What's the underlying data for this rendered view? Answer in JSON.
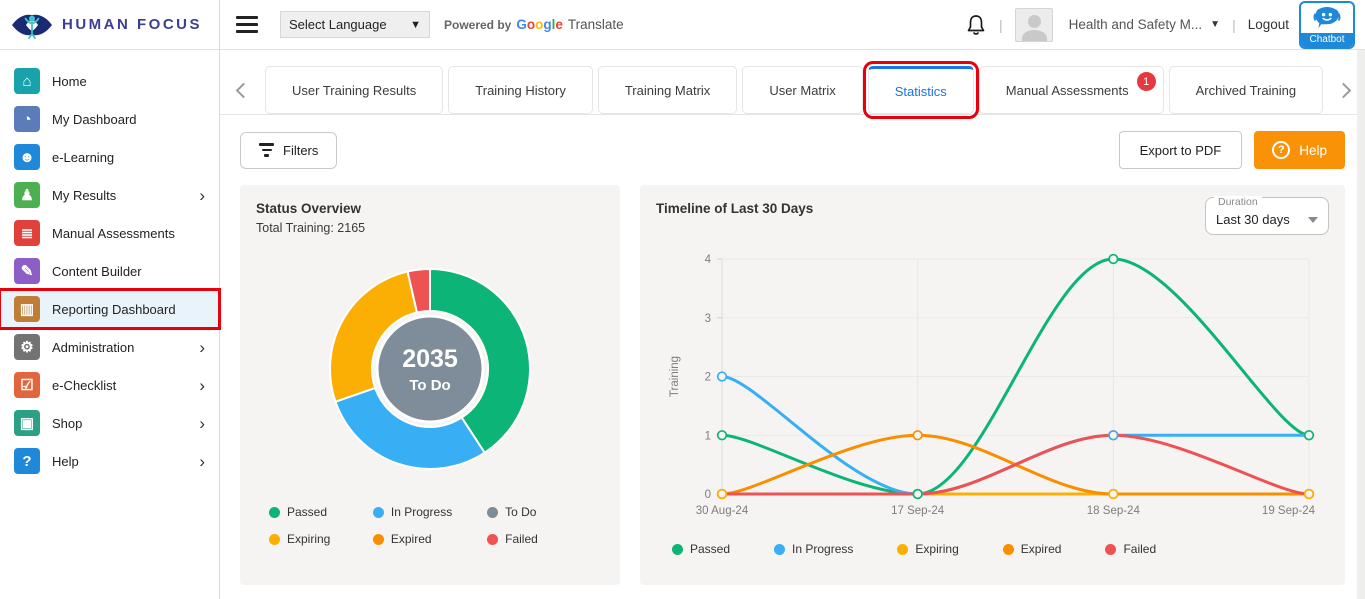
{
  "brand": {
    "name": "HUMAN FOCUS"
  },
  "topbar": {
    "language_select": "Select Language",
    "powered_by": "Powered by",
    "google": "Google",
    "translate": "Translate",
    "account_name": "Health and Safety M...",
    "logout": "Logout",
    "chatbot_label": "Chatbot"
  },
  "sidebar": {
    "items": [
      {
        "label": "Home",
        "icon": "home-icon",
        "glyph": "⌂",
        "color": "#17a2ac"
      },
      {
        "label": "My Dashboard",
        "icon": "dashboard-icon",
        "glyph": "◔",
        "color": "#5b7cb9"
      },
      {
        "label": "e-Learning",
        "icon": "elearning-icon",
        "glyph": "☻",
        "color": "#1f88d9"
      },
      {
        "label": "My Results",
        "icon": "results-icon",
        "glyph": "♟",
        "color": "#4caf50",
        "chevron": true
      },
      {
        "label": "Manual Assessments",
        "icon": "assessments-icon",
        "glyph": "≣",
        "color": "#e2403a"
      },
      {
        "label": "Content Builder",
        "icon": "content-builder-icon",
        "glyph": "✎",
        "color": "#8d5fc4"
      },
      {
        "label": "Reporting Dashboard",
        "icon": "reporting-icon",
        "glyph": "▥",
        "color": "#bf7d35",
        "active": true,
        "annotated": true
      },
      {
        "label": "Administration",
        "icon": "administration-icon",
        "glyph": "⚙",
        "color": "#737373",
        "chevron": true
      },
      {
        "label": "e-Checklist",
        "icon": "echecklist-icon",
        "glyph": "☑",
        "color": "#e2663d",
        "chevron": true
      },
      {
        "label": "Shop",
        "icon": "shop-icon",
        "glyph": "▣",
        "color": "#2ba084",
        "chevron": true
      },
      {
        "label": "Help",
        "icon": "help-icon",
        "glyph": "?",
        "color": "#1f88d9",
        "chevron": true
      }
    ]
  },
  "tabs": {
    "items": [
      {
        "label": "User Training Results"
      },
      {
        "label": "Training History"
      },
      {
        "label": "Training Matrix"
      },
      {
        "label": "User Matrix"
      },
      {
        "label": "Statistics",
        "active": true,
        "annotated": true
      },
      {
        "label": "Manual Assessments",
        "badge": "1"
      },
      {
        "label": "Archived Training"
      }
    ]
  },
  "toolbar": {
    "filters_label": "Filters",
    "export_label": "Export to PDF",
    "help_label": "Help"
  },
  "status_card": {
    "title": "Status Overview",
    "subtitle": "Total Training: 2165",
    "center_value": "2035",
    "center_label": "To Do"
  },
  "timeline_card": {
    "title": "Timeline of Last 30 Days",
    "duration_label": "Duration",
    "duration_value": "Last 30 days"
  },
  "chart_data": [
    {
      "type": "pie",
      "title": "Status Overview",
      "total_training": 2165,
      "center": {
        "value": 2035,
        "label": "To Do"
      },
      "donut": true,
      "segments": [
        {
          "label": "Passed",
          "percent": 40.8,
          "color": "#0cb577"
        },
        {
          "label": "In Progress",
          "percent": 28.9,
          "color": "#38aff5"
        },
        {
          "label": "Expiring",
          "percent": 26.7,
          "color": "#fbaf05"
        },
        {
          "label": "Failed",
          "percent": 3.6,
          "color": "#ee5253"
        }
      ],
      "legend": [
        {
          "label": "Passed",
          "color": "#0cb577"
        },
        {
          "label": "In Progress",
          "color": "#38aff5"
        },
        {
          "label": "To Do",
          "color": "#7d8c99"
        },
        {
          "label": "Expiring",
          "color": "#fbaf05"
        },
        {
          "label": "Expired",
          "color": "#f98e00"
        },
        {
          "label": "Failed",
          "color": "#ee5253"
        }
      ],
      "center_color": "#7e8d99"
    },
    {
      "type": "line",
      "title": "Timeline of Last 30 Days",
      "categories": [
        "30 Aug-24",
        "17 Sep-24",
        "18 Sep-24",
        "19 Sep-24"
      ],
      "series": [
        {
          "name": "Passed",
          "color": "#0cb577",
          "values": [
            1,
            0,
            4,
            1
          ]
        },
        {
          "name": "In Progress",
          "color": "#38aff5",
          "values": [
            2,
            0,
            1,
            1
          ]
        },
        {
          "name": "Expiring",
          "color": "#fbaf05",
          "values": [
            0,
            0,
            0,
            0
          ]
        },
        {
          "name": "Expired",
          "color": "#f98e00",
          "values": [
            0,
            1,
            0,
            0
          ]
        },
        {
          "name": "Failed",
          "color": "#ee5253",
          "values": [
            0,
            0,
            1,
            0
          ]
        }
      ],
      "ylabel": "Training",
      "ylim": [
        0,
        4
      ],
      "yticks": [
        0,
        1,
        2,
        3,
        4
      ],
      "grid": true,
      "legend_position": "bottom"
    }
  ]
}
